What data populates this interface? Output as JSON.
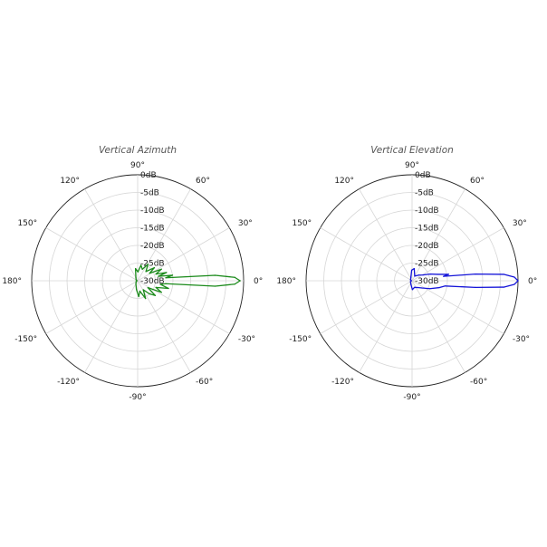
{
  "chart_data": [
    {
      "type": "polar-line",
      "title": "Vertical Azimuth",
      "angle_unit": "deg",
      "radial_unit": "dB",
      "radial_range": [
        -30,
        0
      ],
      "radial_ticks": [
        "0dB",
        "-5dB",
        "-10dB",
        "-15dB",
        "-20dB",
        "-25dB",
        "-30dB"
      ],
      "angle_ticks": [
        "0°",
        "30°",
        "60°",
        "90°",
        "120°",
        "150°",
        "180°",
        "-150°",
        "-120°",
        "-90°",
        "-60°",
        "-30°"
      ],
      "grid": true,
      "line_color": "#1a8a1a",
      "series": [
        {
          "points": [
            {
              "angle": 0,
              "db": -1.0
            },
            {
              "angle": 2,
              "db": -2.5
            },
            {
              "angle": 4,
              "db": -8.0
            },
            {
              "angle": 6,
              "db": -22.0
            },
            {
              "angle": 9,
              "db": -20.0
            },
            {
              "angle": 12,
              "db": -24.0
            },
            {
              "angle": 16,
              "db": -21.5
            },
            {
              "angle": 20,
              "db": -24.5
            },
            {
              "angle": 26,
              "db": -22.5
            },
            {
              "angle": 32,
              "db": -26.0
            },
            {
              "angle": 38,
              "db": -24.0
            },
            {
              "angle": 48,
              "db": -26.5
            },
            {
              "angle": 58,
              "db": -24.5
            },
            {
              "angle": 68,
              "db": -26.5
            },
            {
              "angle": 78,
              "db": -25.5
            },
            {
              "angle": 88,
              "db": -27.5
            },
            {
              "angle": 100,
              "db": -26.5
            },
            {
              "angle": 120,
              "db": -29.0
            },
            {
              "angle": 150,
              "db": -29.5
            },
            {
              "angle": 180,
              "db": -29.8
            },
            {
              "angle": -150,
              "db": -29.5
            },
            {
              "angle": -120,
              "db": -29.0
            },
            {
              "angle": -98,
              "db": -27.5
            },
            {
              "angle": -86,
              "db": -25.5
            },
            {
              "angle": -78,
              "db": -27.0
            },
            {
              "angle": -66,
              "db": -24.5
            },
            {
              "angle": -58,
              "db": -27.0
            },
            {
              "angle": -48,
              "db": -25.0
            },
            {
              "angle": -40,
              "db": -23.5
            },
            {
              "angle": -34,
              "db": -26.5
            },
            {
              "angle": -26,
              "db": -22.5
            },
            {
              "angle": -20,
              "db": -24.5
            },
            {
              "angle": -14,
              "db": -21.0
            },
            {
              "angle": -9,
              "db": -23.5
            },
            {
              "angle": -6,
              "db": -22.0
            },
            {
              "angle": -4,
              "db": -8.0
            },
            {
              "angle": -2,
              "db": -2.5
            },
            {
              "angle": 0,
              "db": -1.0
            }
          ]
        }
      ]
    },
    {
      "type": "polar-line",
      "title": "Vertical Elevation",
      "angle_unit": "deg",
      "radial_unit": "dB",
      "radial_range": [
        -30,
        0
      ],
      "radial_ticks": [
        "0dB",
        "-5dB",
        "-10dB",
        "-15dB",
        "-20dB",
        "-25dB",
        "-30dB"
      ],
      "angle_ticks": [
        "0°",
        "30°",
        "60°",
        "90°",
        "120°",
        "150°",
        "180°",
        "-150°",
        "-120°",
        "-90°",
        "-60°",
        "-30°"
      ],
      "grid": true,
      "line_color": "#1414d8",
      "series": [
        {
          "points": [
            {
              "angle": 0,
              "db": 0.0
            },
            {
              "angle": 2,
              "db": -1.0
            },
            {
              "angle": 4,
              "db": -4.0
            },
            {
              "angle": 6,
              "db": -12.0
            },
            {
              "angle": 8,
              "db": -21.0
            },
            {
              "angle": 10,
              "db": -19.5
            },
            {
              "angle": 14,
              "db": -22.5
            },
            {
              "angle": 20,
              "db": -24.5
            },
            {
              "angle": 28,
              "db": -26.5
            },
            {
              "angle": 40,
              "db": -27.5
            },
            {
              "angle": 60,
              "db": -28.5
            },
            {
              "angle": 80,
              "db": -26.5
            },
            {
              "angle": 92,
              "db": -27.0
            },
            {
              "angle": 110,
              "db": -29.0
            },
            {
              "angle": 150,
              "db": -29.5
            },
            {
              "angle": 180,
              "db": -29.8
            },
            {
              "angle": -150,
              "db": -29.5
            },
            {
              "angle": -110,
              "db": -29.0
            },
            {
              "angle": -88,
              "db": -27.5
            },
            {
              "angle": -70,
              "db": -28.0
            },
            {
              "angle": -50,
              "db": -27.5
            },
            {
              "angle": -36,
              "db": -26.5
            },
            {
              "angle": -24,
              "db": -24.5
            },
            {
              "angle": -14,
              "db": -22.0
            },
            {
              "angle": -9,
              "db": -20.5
            },
            {
              "angle": -6,
              "db": -12.0
            },
            {
              "angle": -4,
              "db": -4.0
            },
            {
              "angle": -2,
              "db": -1.0
            },
            {
              "angle": 0,
              "db": 0.0
            }
          ]
        }
      ]
    }
  ]
}
